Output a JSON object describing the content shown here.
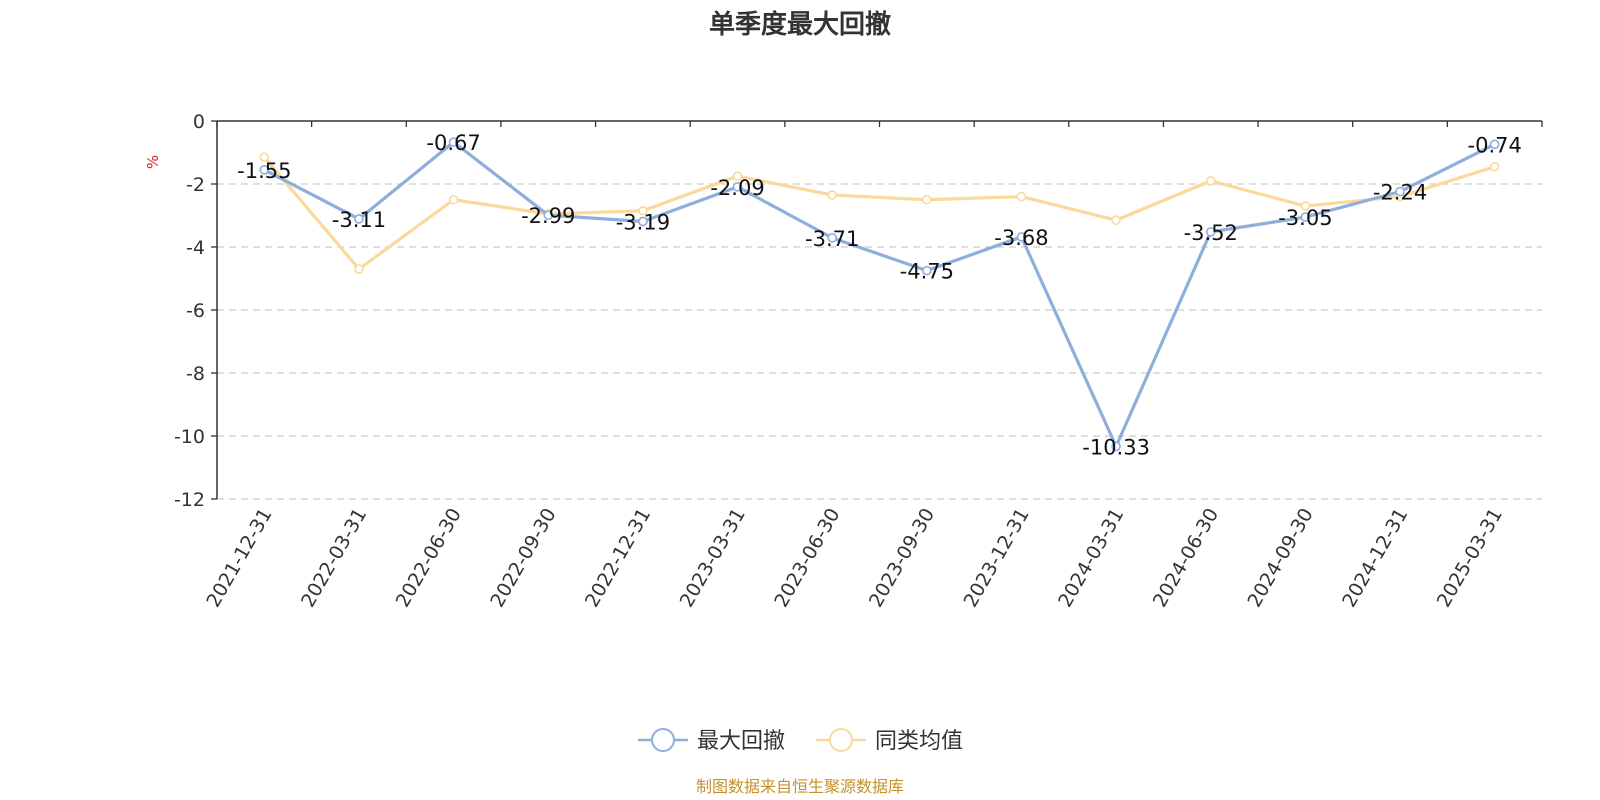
{
  "chart_data": {
    "type": "line",
    "title": "单季度最大回撤",
    "ylabel": "%",
    "ylim": [
      -12,
      0
    ],
    "yticks": [
      "0",
      "-2",
      "-4",
      "-6",
      "-8",
      "-10",
      "-12"
    ],
    "grid": true,
    "legend_position": "bottom",
    "categories": [
      "2021-12-31",
      "2022-03-31",
      "2022-06-30",
      "2022-09-30",
      "2022-12-31",
      "2023-03-31",
      "2023-06-30",
      "2023-09-30",
      "2023-12-31",
      "2024-03-31",
      "2024-06-30",
      "2024-09-30",
      "2024-12-31",
      "2025-03-31"
    ],
    "series": [
      {
        "name": "最大回撤",
        "color": "#8eaedb",
        "values": [
          -1.55,
          -3.11,
          -0.67,
          -2.99,
          -3.19,
          -2.09,
          -3.71,
          -4.75,
          -3.68,
          -10.33,
          -3.52,
          -3.05,
          -2.24,
          -0.74
        ],
        "labels": [
          "-1.55",
          "-3.11",
          "-0.67",
          "-2.99",
          "-3.19",
          "-2.09",
          "-3.71",
          "-4.75",
          "-3.68",
          "-10.33",
          "-3.52",
          "-3.05",
          "-2.24",
          "-0.74"
        ]
      },
      {
        "name": "同类均值",
        "color": "#fad99a",
        "values": [
          -1.15,
          -4.7,
          -2.5,
          -2.95,
          -2.85,
          -1.75,
          -2.35,
          -2.5,
          -2.4,
          -3.15,
          -1.9,
          -2.7,
          -2.4,
          -1.45
        ]
      }
    ],
    "source": "制图数据来自恒生聚源数据库"
  }
}
